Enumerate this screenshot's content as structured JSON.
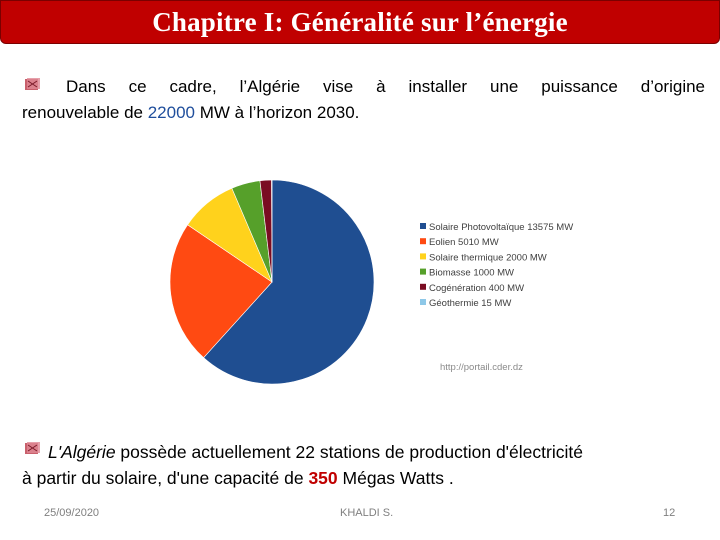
{
  "slide": {
    "title": "Chapitre I: Généralité sur l’énergie",
    "para1": {
      "p1": "Dans ce cadre,  l’Algérie vise à installer une puissance d’origine",
      "p2": "renouvelable de ",
      "number": "22000",
      "p3": " MW à l’horizon 2030."
    },
    "para2": {
      "country": "L'Algérie",
      "p1": " possède actuellement 22 stations de production d'électricité",
      "p2": "à partir du solaire, d'une capacité de ",
      "number": "350",
      "p3": " Mégas Watts ."
    },
    "footer": {
      "date": "25/09/2020",
      "author": "KHALDI S.",
      "page": "12"
    },
    "source": "http://portail.cder.dz"
  },
  "chart_data": {
    "type": "pie",
    "unit": "MW",
    "slices": [
      {
        "label": "Solaire Photovoltaïque 13575 MW",
        "value": 13575,
        "color": "#1f4e91"
      },
      {
        "label": "Eolien 5010 MW",
        "value": 5010,
        "color": "#ff4a12"
      },
      {
        "label": "Solaire thermique 2000 MW",
        "value": 2000,
        "color": "#ffd21c"
      },
      {
        "label": "Biomasse 1000 MW",
        "value": 1000,
        "color": "#56a02a"
      },
      {
        "label": "Cogénération 400 MW",
        "value": 400,
        "color": "#7a0c22"
      },
      {
        "label": "Géothermie 15 MW",
        "value": 15,
        "color": "#8ec8e8"
      }
    ],
    "legend_position": "right",
    "start": "top",
    "direction": "clockwise"
  }
}
